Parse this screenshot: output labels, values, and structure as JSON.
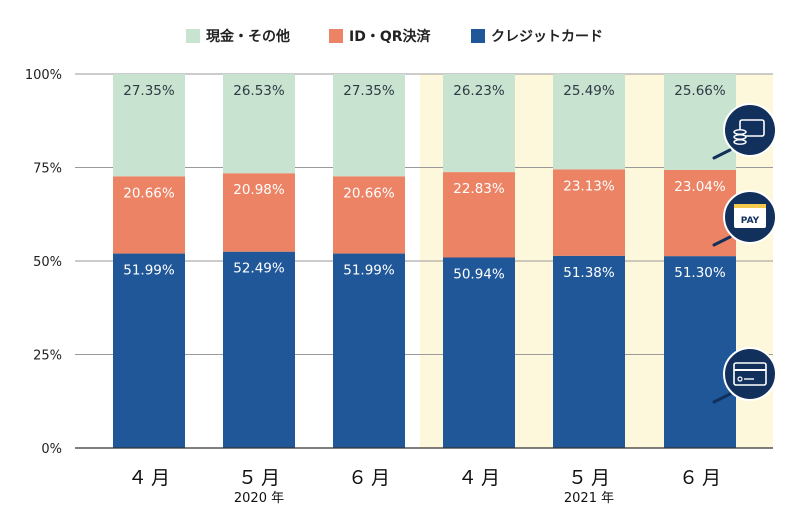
{
  "chart_data": {
    "type": "bar",
    "stacked": true,
    "categories": [
      "４月",
      "５月",
      "６月",
      "４月",
      "５月",
      "６月"
    ],
    "year_groups": [
      {
        "label": "2020 年",
        "categories": [
          0,
          1,
          2
        ],
        "highlighted": false
      },
      {
        "label": "2021 年",
        "categories": [
          3,
          4,
          5
        ],
        "highlighted": true
      }
    ],
    "series": [
      {
        "name": "クレジットカード",
        "color": "#1f5799",
        "label_color": "#ffffff",
        "values": [
          51.99,
          52.49,
          51.99,
          50.94,
          51.38,
          51.3
        ]
      },
      {
        "name": "ID・QR決済",
        "color": "#ec8365",
        "label_color": "#ffffff",
        "values": [
          20.66,
          20.98,
          20.66,
          22.83,
          23.13,
          23.04
        ]
      },
      {
        "name": "現金・その他",
        "color": "#c8e4d1",
        "label_color": "#2e3a44",
        "values": [
          27.35,
          26.53,
          27.35,
          26.23,
          25.49,
          25.66
        ]
      }
    ],
    "legend_order": [
      "現金・その他",
      "ID・QR決済",
      "クレジットカード"
    ],
    "legend_position": "top",
    "ylim": [
      0,
      100
    ],
    "yticks": [
      0,
      25,
      50,
      75,
      100
    ],
    "ytick_labels": [
      "0%",
      "25%",
      "50%",
      "75%",
      "100%"
    ],
    "grid": true,
    "value_suffix": "%",
    "highlight_color": "#fdf8dc",
    "icons": [
      {
        "name": "cash-register-icon",
        "series": "現金・その他"
      },
      {
        "name": "pay-card-icon",
        "series": "ID・QR決済",
        "text": "PAY"
      },
      {
        "name": "credit-card-icon",
        "series": "クレジットカード"
      }
    ]
  }
}
